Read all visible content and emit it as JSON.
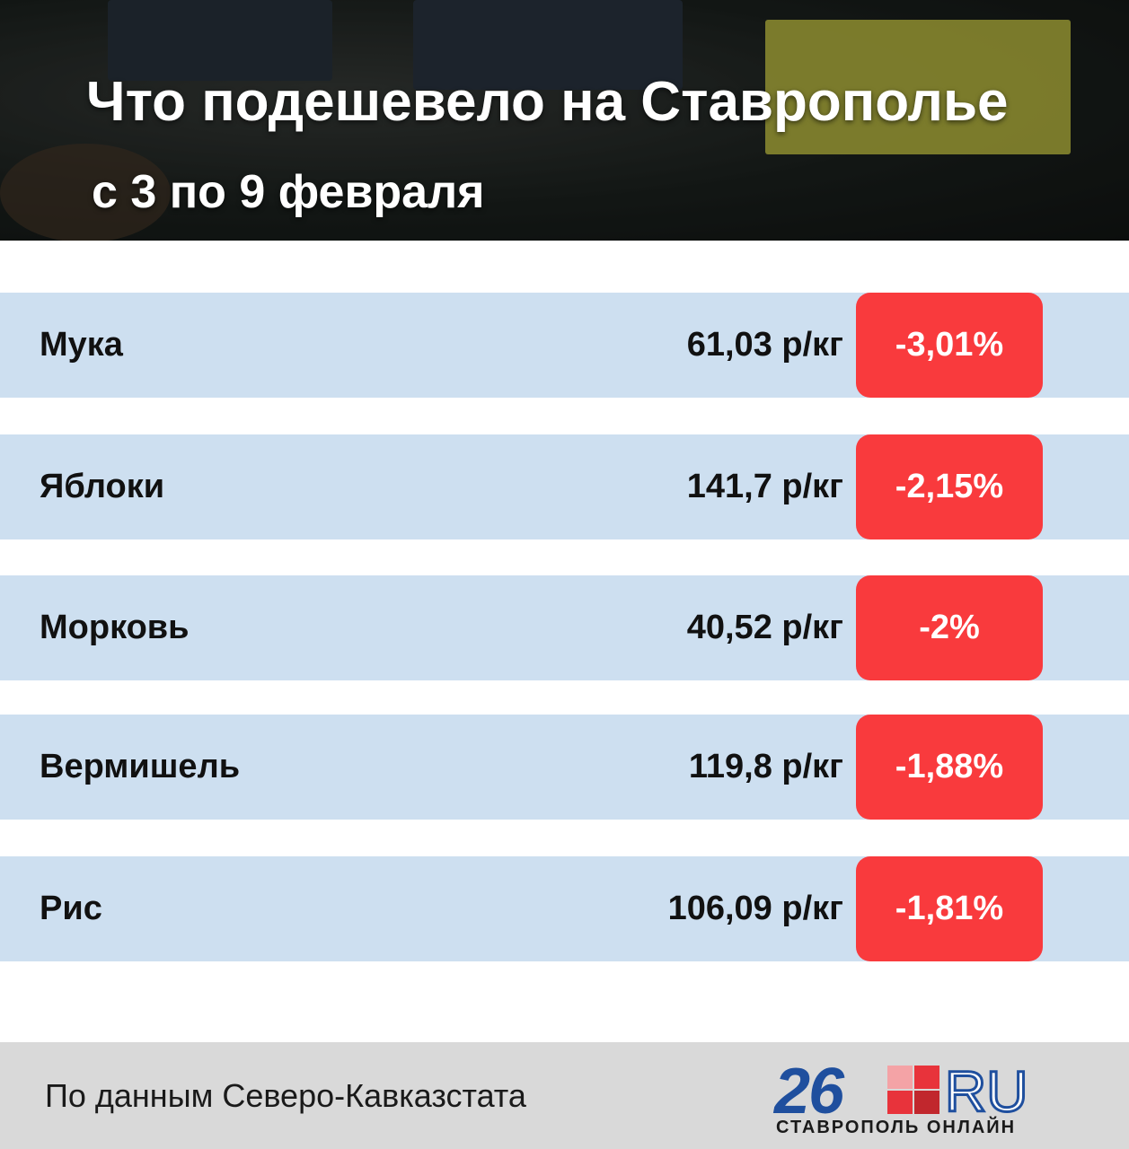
{
  "header": {
    "title": "Что подешевело на Ставрополье",
    "subtitle": "с 3 по 9 февраля"
  },
  "table": {
    "rows": [
      [
        "Мука",
        "61,03 р/кг",
        "-3,01%"
      ],
      [
        "Яблоки",
        "141,7 р/кг",
        "-2,15%"
      ],
      [
        "Морковь",
        "40,52 р/кг",
        "-2%"
      ],
      [
        "Вермишель",
        "119,8 р/кг",
        "-1,88%"
      ],
      [
        "Рис",
        "106,09 р/кг",
        "-1,81%"
      ]
    ]
  },
  "footer": {
    "source": "По данным Северо-Кавказстата",
    "logo_number": "26",
    "logo_domain": "RU",
    "logo_tagline": "СТАВРОПОЛЬ ОНЛАЙН"
  }
}
